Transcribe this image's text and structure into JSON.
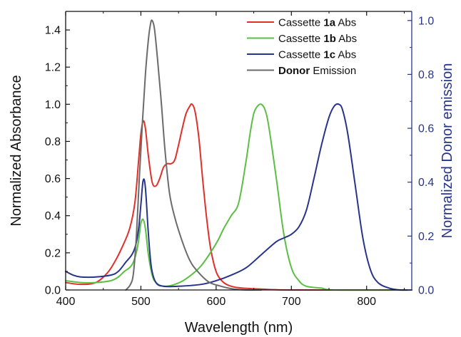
{
  "chart_data": {
    "type": "line",
    "xlabel": "Wavelength (nm)",
    "ylabel": "Normalized Absorbance",
    "y2label": "Normalized Donor emission",
    "xlim": [
      400,
      860
    ],
    "ylim": [
      0,
      1.5
    ],
    "y2lim": [
      0,
      1.0338
    ],
    "x_ticks": [
      "400",
      "500",
      "600",
      "700",
      "800"
    ],
    "y_ticks": [
      "0.0",
      "0.2",
      "0.4",
      "0.6",
      "0.8",
      "1.0",
      "1.2",
      "1.4"
    ],
    "y2_ticks": [
      "0.0",
      "0.2",
      "0.4",
      "0.6",
      "0.8",
      "1.0"
    ],
    "colors": {
      "axis_left": "#111111",
      "axis_right": "#27348b"
    },
    "legend_position": "top-right",
    "series": [
      {
        "name": "Cassette 1a Abs",
        "legend_bold": "1a",
        "axis": "left",
        "color": "#e0302a",
        "x": [
          400,
          420,
          440,
          455,
          465,
          475,
          485,
          492,
          497,
          500,
          503,
          506,
          510,
          515,
          520,
          525,
          530,
          535,
          540,
          545,
          550,
          555,
          560,
          565,
          568,
          572,
          577,
          582,
          587,
          592,
          597,
          602,
          610,
          620,
          635,
          660,
          700,
          860
        ],
        "y": [
          0.04,
          0.03,
          0.04,
          0.09,
          0.15,
          0.23,
          0.33,
          0.47,
          0.7,
          0.84,
          0.91,
          0.87,
          0.72,
          0.58,
          0.56,
          0.6,
          0.66,
          0.68,
          0.68,
          0.7,
          0.78,
          0.87,
          0.95,
          0.99,
          1.0,
          0.96,
          0.82,
          0.6,
          0.4,
          0.24,
          0.14,
          0.08,
          0.04,
          0.02,
          0.01,
          0.005,
          0.0,
          0.0
        ]
      },
      {
        "name": "Cassette 1b Abs",
        "legend_bold": "1b",
        "axis": "left",
        "color": "#5bbf42",
        "x": [
          400,
          420,
          440,
          460,
          470,
          478,
          485,
          490,
          495,
          498,
          500,
          503,
          506,
          510,
          515,
          520,
          530,
          545,
          560,
          580,
          600,
          610,
          620,
          630,
          640,
          645,
          650,
          655,
          660,
          665,
          670,
          680,
          690,
          700,
          710,
          720,
          740,
          760,
          860
        ],
        "y": [
          0.05,
          0.04,
          0.04,
          0.05,
          0.07,
          0.1,
          0.12,
          0.15,
          0.22,
          0.3,
          0.36,
          0.38,
          0.33,
          0.19,
          0.08,
          0.04,
          0.02,
          0.03,
          0.06,
          0.13,
          0.25,
          0.33,
          0.4,
          0.47,
          0.7,
          0.84,
          0.95,
          0.99,
          1.0,
          0.97,
          0.88,
          0.6,
          0.3,
          0.12,
          0.05,
          0.02,
          0.01,
          0.0,
          0.0
        ]
      },
      {
        "name": "Cassette 1c Abs",
        "legend_bold": "1c",
        "axis": "left",
        "color": "#27348b",
        "x": [
          400,
          410,
          420,
          440,
          460,
          470,
          480,
          488,
          493,
          497,
          500,
          503,
          506,
          510,
          514,
          520,
          530,
          550,
          580,
          600,
          620,
          640,
          660,
          680,
          690,
          700,
          710,
          720,
          730,
          740,
          750,
          757,
          763,
          768,
          775,
          785,
          795,
          805,
          815,
          830,
          845,
          860
        ],
        "y": [
          0.1,
          0.08,
          0.07,
          0.07,
          0.08,
          0.1,
          0.15,
          0.19,
          0.24,
          0.33,
          0.46,
          0.59,
          0.55,
          0.3,
          0.12,
          0.04,
          0.02,
          0.02,
          0.03,
          0.05,
          0.08,
          0.12,
          0.19,
          0.26,
          0.28,
          0.3,
          0.34,
          0.43,
          0.6,
          0.78,
          0.93,
          0.99,
          1.0,
          0.97,
          0.84,
          0.56,
          0.28,
          0.11,
          0.04,
          0.01,
          0.0,
          0.0
        ]
      },
      {
        "name": "Donor Emission",
        "legend_bold": "Donor",
        "axis": "right",
        "color": "#6b6b6b",
        "x": [
          480,
          486,
          490,
          494,
          498,
          502,
          506,
          510,
          513,
          515,
          518,
          522,
          527,
          532,
          538,
          545,
          555,
          565,
          575,
          590,
          605,
          620,
          640,
          660
        ],
        "y": [
          0.0,
          0.02,
          0.06,
          0.2,
          0.42,
          0.62,
          0.8,
          0.93,
          0.99,
          1.0,
          0.97,
          0.86,
          0.7,
          0.52,
          0.36,
          0.27,
          0.18,
          0.11,
          0.07,
          0.03,
          0.015,
          0.005,
          0.0,
          0.0
        ]
      }
    ]
  }
}
